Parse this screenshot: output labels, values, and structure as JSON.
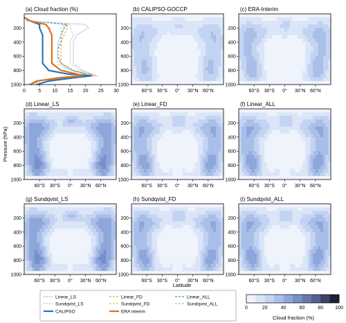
{
  "figure": {
    "ylabel": "Pressure (hPa)",
    "xlabel": "Latitude",
    "colorbar_label": "Cloud fraction (%)",
    "colorbar_ticks": [
      "0",
      "20",
      "40",
      "60",
      "80",
      "100"
    ],
    "colorbar_colors": [
      "#ffffff",
      "#eef3fc",
      "#dbe5f8",
      "#c3d3f2",
      "#a9bfe8",
      "#8ea7da",
      "#7a8fc8",
      "#6878b0",
      "#56608f",
      "#3d4266",
      "#1e2034"
    ]
  },
  "chart_data": [
    {
      "type": "line",
      "title": "(a) Cloud fraction (%)",
      "xlim": [
        0,
        30
      ],
      "ylim": [
        1000,
        0
      ],
      "xticks": [
        "0",
        "5",
        "10",
        "15",
        "20",
        "25",
        "30"
      ],
      "yticks": [
        "200",
        "400",
        "600",
        "800",
        "1000"
      ],
      "pressure": [
        50,
        100,
        150,
        200,
        300,
        400,
        500,
        600,
        700,
        800,
        850,
        875,
        900,
        950,
        1000
      ],
      "series": [
        {
          "name": "Linear_LS",
          "style": "dotted",
          "color": "#5a6fb8",
          "values": [
            0,
            1,
            20,
            21,
            17,
            16,
            16,
            16,
            16,
            19,
            22,
            21,
            14,
            4,
            1
          ]
        },
        {
          "name": "Sundqvist_LS",
          "style": "dotted",
          "color": "#d070b8",
          "values": [
            0,
            1,
            15,
            15,
            16,
            15,
            15,
            15,
            15,
            18,
            22,
            24,
            16,
            5,
            2
          ]
        },
        {
          "name": "Linear_FD",
          "style": "dashed",
          "color": "#f08020",
          "values": [
            0,
            1,
            14,
            14,
            13,
            12,
            12,
            12,
            12,
            16,
            21,
            23,
            15,
            5,
            2
          ]
        },
        {
          "name": "Sundqvist_FD",
          "style": "dashed",
          "color": "#d8c020",
          "values": [
            0,
            1,
            13,
            13,
            12,
            11,
            11,
            11,
            12,
            16,
            21,
            22,
            15,
            5,
            2
          ]
        },
        {
          "name": "Linear_ALL",
          "style": "dashed",
          "color": "#2a7a50",
          "values": [
            0,
            1,
            14,
            13,
            12,
            12,
            11,
            11,
            12,
            16,
            20,
            21,
            14,
            5,
            2
          ]
        },
        {
          "name": "Sundqvist_ALL",
          "style": "dashed",
          "color": "#60c0e0",
          "values": [
            0,
            1,
            13,
            12,
            12,
            11,
            11,
            11,
            11,
            15,
            19,
            21,
            14,
            5,
            2
          ]
        },
        {
          "name": "CALIPSO",
          "style": "solid",
          "color": "#2f72b6",
          "values": [
            0,
            2,
            5,
            5,
            6,
            6,
            6,
            6,
            6,
            8,
            14,
            22,
            17,
            8,
            4
          ]
        },
        {
          "name": "ERA interim",
          "style": "solid",
          "color": "#e07020",
          "values": [
            0,
            2,
            7,
            8,
            9,
            9,
            9,
            9,
            9,
            12,
            17,
            19,
            12,
            4,
            2
          ]
        }
      ],
      "legend_location": "below"
    },
    {
      "type": "heatmap",
      "title": "(b) CALIPSO-GOCCP",
      "intensity": 0.55,
      "xticks": [
        "60°S",
        "30°S",
        "0°",
        "30°N",
        "60°N"
      ],
      "yticks": [
        "200",
        "400",
        "600",
        "800",
        "1000"
      ]
    },
    {
      "type": "heatmap",
      "title": "(c) ERA-Interim",
      "intensity": 0.65,
      "xticks": [
        "60°S",
        "30°S",
        "0°",
        "30°N",
        "60°N"
      ],
      "yticks": [
        "200",
        "400",
        "600",
        "800",
        "1000"
      ]
    },
    {
      "type": "heatmap",
      "title": "(d) Linear_LS",
      "intensity": 1.0,
      "xticks": [
        "60°S",
        "30°S",
        "0°",
        "30°N",
        "60°N"
      ],
      "yticks": [
        "200",
        "400",
        "600",
        "800",
        "1000"
      ]
    },
    {
      "type": "heatmap",
      "title": "(e) Linear_FD",
      "intensity": 0.8,
      "xticks": [
        "60°S",
        "30°S",
        "0°",
        "30°N",
        "60°N"
      ],
      "yticks": [
        "200",
        "400",
        "600",
        "800",
        "1000"
      ]
    },
    {
      "type": "heatmap",
      "title": "(f) Linear_ALL",
      "intensity": 0.82,
      "xticks": [
        "60°S",
        "30°S",
        "0°",
        "30°N",
        "60°N"
      ],
      "yticks": [
        "200",
        "400",
        "600",
        "800",
        "1000"
      ]
    },
    {
      "type": "heatmap",
      "title": "(g) Sundqvist_LS",
      "intensity": 1.0,
      "xticks": [
        "60°S",
        "30°S",
        "0°",
        "30°N",
        "60°N"
      ],
      "yticks": [
        "200",
        "400",
        "600",
        "800",
        "1000"
      ]
    },
    {
      "type": "heatmap",
      "title": "(h) Sundqvist_FD",
      "intensity": 0.8,
      "xticks": [
        "60°S",
        "30°S",
        "0°",
        "30°N",
        "60°N"
      ],
      "yticks": [
        "200",
        "400",
        "600",
        "800",
        "1000"
      ]
    },
    {
      "type": "heatmap",
      "title": "(i) Sundqvist_ALL",
      "intensity": 0.82,
      "xticks": [
        "60°S",
        "30°S",
        "0°",
        "30°N",
        "60°N"
      ],
      "yticks": [
        "200",
        "400",
        "600",
        "800",
        "1000"
      ]
    }
  ]
}
